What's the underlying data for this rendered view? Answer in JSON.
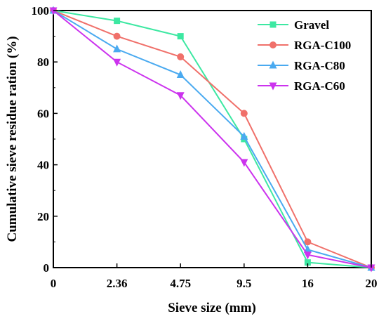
{
  "chart_data": {
    "type": "line",
    "title": "",
    "xlabel": "Sieve size (mm)",
    "ylabel": "Cumulative sieve residue ration (%)",
    "categories": [
      "0",
      "2.36",
      "4.75",
      "9.5",
      "16",
      "20"
    ],
    "ylim": [
      0,
      100
    ],
    "yticks": [
      "0",
      "20",
      "40",
      "60",
      "80",
      "100"
    ],
    "grid": false,
    "legend_position": "top-right",
    "series": [
      {
        "name": "Gravel",
        "color": "#3de8a2",
        "marker": "square",
        "values": [
          100,
          96,
          90,
          50,
          2,
          0
        ]
      },
      {
        "name": "RGA-C100",
        "color": "#f0706a",
        "marker": "circle",
        "values": [
          100,
          90,
          82,
          60,
          10,
          0
        ]
      },
      {
        "name": "RGA-C80",
        "color": "#4aaaf0",
        "marker": "triangle-up",
        "values": [
          100,
          85,
          75,
          51,
          7,
          0
        ]
      },
      {
        "name": "RGA-C60",
        "color": "#cc33ee",
        "marker": "triangle-down",
        "values": [
          100,
          80,
          67,
          41,
          5,
          0
        ]
      }
    ]
  }
}
